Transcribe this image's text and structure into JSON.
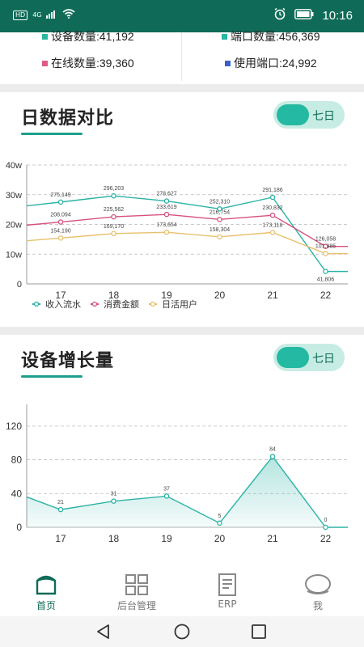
{
  "status": {
    "time": "10:16",
    "hd": "HD",
    "net": "4G"
  },
  "stats": {
    "device_count": "设备数量:41,192",
    "port_count": "端口数量:456,369",
    "online_count": "在线数量:39,360",
    "used_port": "使用端口:24,992",
    "colors": {
      "device": "#27b8a0",
      "port": "#27b8a0",
      "online": "#e05a86",
      "used": "#3a63c9"
    }
  },
  "section1": {
    "title": "日数据对比",
    "toggle": "七日"
  },
  "section2": {
    "title": "设备增长量",
    "toggle": "七日"
  },
  "chart_data": [
    {
      "type": "line",
      "x": [
        "17",
        "18",
        "19",
        "20",
        "21",
        "22"
      ],
      "y_ticks": [
        "0",
        "10w",
        "20w",
        "30w",
        "40w"
      ],
      "ylim": [
        0,
        400000
      ],
      "grid": true,
      "legend": "bottom-left",
      "series": [
        {
          "name": "收入流水",
          "color": "#2bb3a6",
          "values": [
            275149,
            296203,
            278627,
            252310,
            291186,
            41806
          ],
          "labels": [
            "275,149",
            "296,203",
            "278,627",
            "252,310",
            "291,186",
            "41,806"
          ]
        },
        {
          "name": "消费金额",
          "color": "#d6517e",
          "values": [
            208094,
            225562,
            233619,
            216754,
            230832,
            126058
          ],
          "labels": [
            "208,094",
            "225,562",
            "233,619",
            "216,754",
            "230,832",
            "126,058"
          ]
        },
        {
          "name": "日活用户",
          "color": "#e8c06d",
          "values": [
            154190,
            169170,
            173654,
            158304,
            173118,
            101985
          ],
          "labels": [
            "154,190",
            "169,170",
            "173,654",
            "158,304",
            "173,118",
            "101,985"
          ]
        }
      ]
    },
    {
      "type": "area",
      "x": [
        "17",
        "18",
        "19",
        "20",
        "21",
        "22"
      ],
      "y_ticks": [
        "0",
        "40",
        "80",
        "120"
      ],
      "ylim": [
        0,
        140
      ],
      "grid": true,
      "series": [
        {
          "color": "#2bb3a6",
          "values": [
            21,
            31,
            37,
            5,
            84,
            0
          ],
          "labels": [
            "21",
            "31",
            "37",
            "5",
            "84",
            "0"
          ]
        }
      ]
    }
  ],
  "nav": {
    "items": [
      {
        "label": "首页"
      },
      {
        "label": "后台管理"
      },
      {
        "label": "ERP"
      },
      {
        "label": "我"
      }
    ]
  }
}
